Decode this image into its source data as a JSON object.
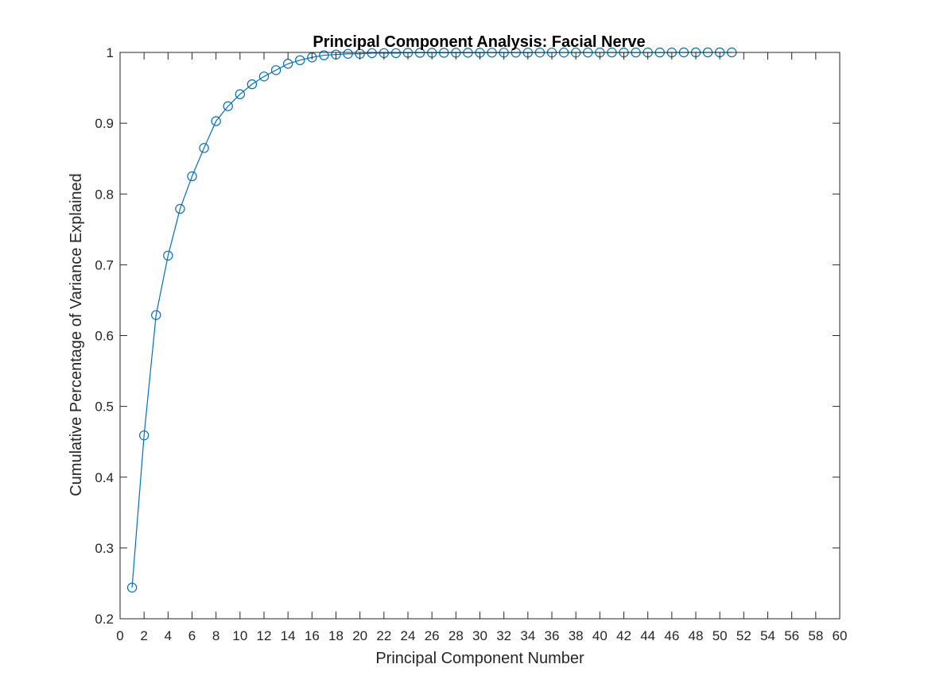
{
  "chart_data": {
    "type": "line",
    "title": "Principal Component Analysis: Facial Nerve",
    "xlabel": "Principal Component Number",
    "ylabel": "Cumulative Percentage of Variance Explained",
    "xlim": [
      0,
      60
    ],
    "ylim": [
      0.2,
      1
    ],
    "xticks": [
      "0",
      "2",
      "4",
      "6",
      "8",
      "10",
      "12",
      "14",
      "16",
      "18",
      "20",
      "22",
      "24",
      "26",
      "28",
      "30",
      "32",
      "34",
      "36",
      "38",
      "40",
      "42",
      "44",
      "46",
      "48",
      "50",
      "52",
      "54",
      "56",
      "58",
      "60"
    ],
    "yticks": [
      "0.2",
      "0.3",
      "0.4",
      "0.5",
      "0.6",
      "0.7",
      "0.8",
      "0.9",
      "1"
    ],
    "grid": false,
    "marker": "circle",
    "series": [
      {
        "color": "#0072BD",
        "x": [
          1,
          2,
          3,
          4,
          5,
          6,
          7,
          8,
          9,
          10,
          11,
          12,
          13,
          14,
          15,
          16,
          17,
          18,
          19,
          20,
          21,
          22,
          23,
          24,
          25,
          26,
          27,
          28,
          29,
          30,
          31,
          32,
          33,
          34,
          35,
          36,
          37,
          38,
          39,
          40,
          41,
          42,
          43,
          44,
          45,
          46,
          47,
          48,
          49,
          50,
          51
        ],
        "y": [
          0.244,
          0.459,
          0.629,
          0.713,
          0.779,
          0.825,
          0.865,
          0.903,
          0.924,
          0.941,
          0.955,
          0.966,
          0.975,
          0.984,
          0.989,
          0.993,
          0.996,
          0.997,
          0.998,
          0.998,
          0.999,
          0.999,
          0.999,
          0.9995,
          0.9995,
          0.9995,
          0.9995,
          0.9996,
          0.9996,
          0.9996,
          0.9997,
          0.9997,
          0.9997,
          0.9997,
          0.9998,
          0.9998,
          0.9998,
          0.9998,
          0.9998,
          0.9999,
          0.9999,
          0.9999,
          0.9999,
          0.9999,
          0.9999,
          0.9999,
          1,
          1,
          1,
          1,
          1
        ]
      }
    ]
  }
}
